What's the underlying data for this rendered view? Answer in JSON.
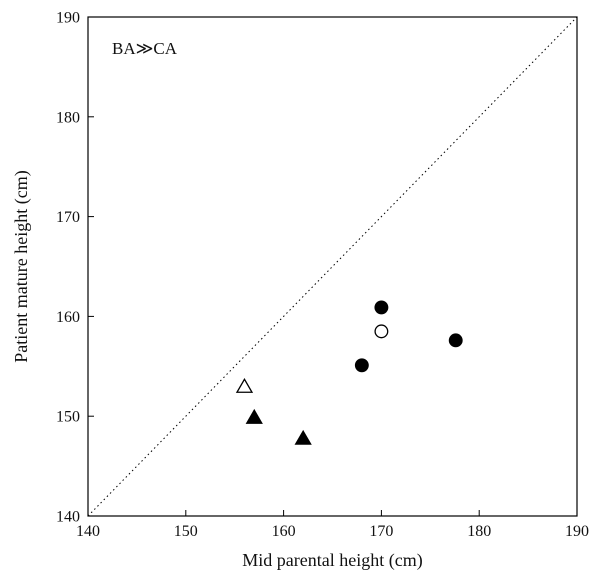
{
  "chart_data": {
    "type": "scatter",
    "title": "",
    "xlabel": "Mid parental height (cm)",
    "ylabel": "Patient mature height (cm)",
    "xlim": [
      140,
      190
    ],
    "ylim": [
      140,
      190
    ],
    "xticks": [
      "140",
      "150",
      "160",
      "170",
      "180",
      "190"
    ],
    "yticks": [
      "140",
      "150",
      "160",
      "170",
      "180",
      "190"
    ],
    "annotation": "BA≫CA",
    "reference_line": {
      "from": [
        140,
        140
      ],
      "to": [
        190,
        190
      ],
      "style": "dotted"
    },
    "grid": false,
    "colors": {
      "ink": "#000000",
      "open_fill": "#ffffff"
    },
    "series": [
      {
        "marker": "circle-filled",
        "points": [
          [
            170,
            160.9
          ],
          [
            168,
            155.1
          ],
          [
            177.6,
            157.6
          ]
        ]
      },
      {
        "marker": "circle-open",
        "points": [
          [
            170,
            158.5
          ]
        ]
      },
      {
        "marker": "triangle-filled",
        "points": [
          [
            157,
            149.9
          ],
          [
            162,
            147.8
          ]
        ]
      },
      {
        "marker": "triangle-open",
        "points": [
          [
            156,
            153
          ]
        ]
      }
    ]
  }
}
